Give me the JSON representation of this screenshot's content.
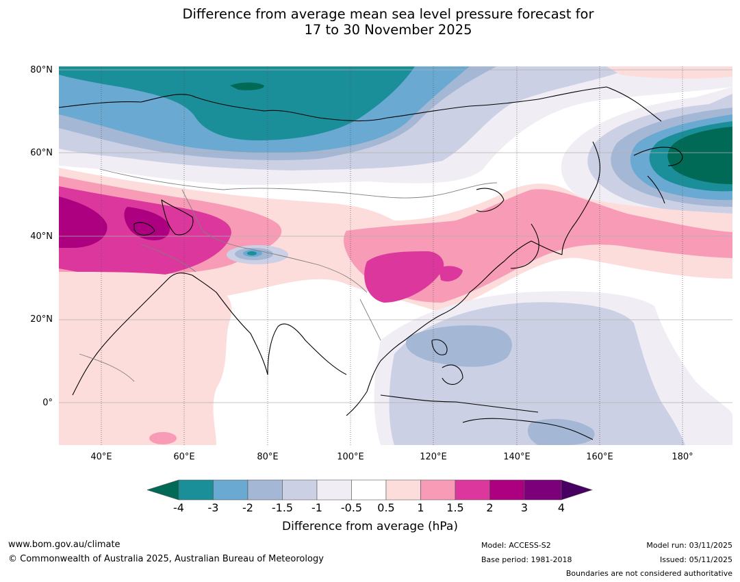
{
  "title": {
    "line1": "Difference from average mean sea level pressure forecast for",
    "line2": "17 to 30 November 2025"
  },
  "map": {
    "latitude_labels": [
      "80°N",
      "60°N",
      "40°N",
      "20°N",
      "0°"
    ],
    "longitude_labels": [
      "40°E",
      "60°E",
      "80°E",
      "100°E",
      "120°E",
      "140°E",
      "160°E",
      "180°"
    ]
  },
  "legend": {
    "title": "Difference from average (hPa)",
    "ticks": [
      "-4",
      "-3",
      "-2",
      "-1.5",
      "-1",
      "-0.5",
      "0.5",
      "1",
      "1.5",
      "2",
      "3",
      "4"
    ],
    "colors": {
      "lt_-4": "#006a57",
      "-4_-3": "#1b8f99",
      "-3_-2": "#69a9d2",
      "-2_-1.5": "#a4b8d6",
      "-1.5_-1": "#ccd0e4",
      "-1_-0.5": "#f0edf5",
      "-0.5_0.5": "#ffffff",
      "0.5_1": "#fddcdc",
      "1_1.5": "#f89bb7",
      "1.5_2": "#dc379c",
      "2_3": "#ad0080",
      "3_4": "#7b0079",
      "gt_4": "#480062"
    }
  },
  "footer": {
    "website": "www.bom.gov.au/climate",
    "copyright": "© Commonwealth of Australia 2025, Australian Bureau of Meteorology",
    "model": "Model: ACCESS-S2",
    "base_period": "Base period: 1981-2018",
    "model_run": "Model run: 03/11/2025",
    "issued": "Issued: 05/11/2025",
    "disclaimer": "Boundaries are not considered authoritative"
  }
}
